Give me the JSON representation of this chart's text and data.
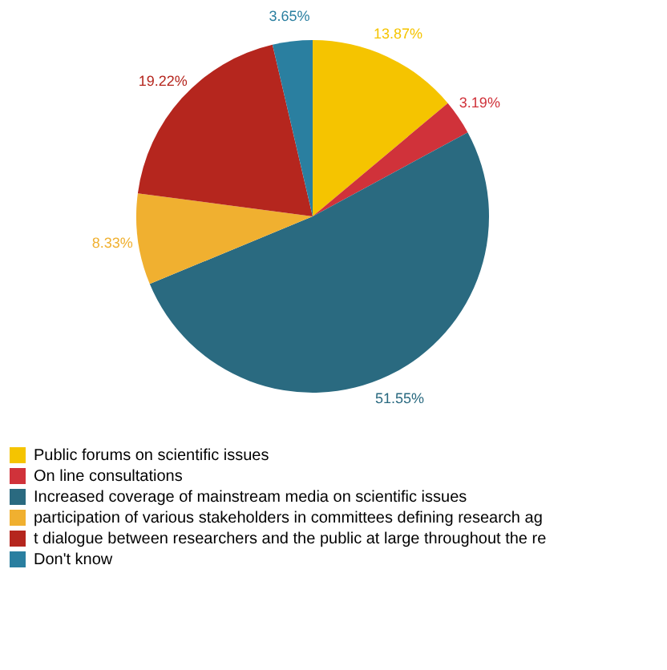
{
  "chart_data": {
    "type": "pie",
    "categories": [
      "Public forums on scientific issues",
      "On line consultations",
      "Increased coverage of mainstream media on scientific issues",
      "participation of various stakeholders in committees defining research ag",
      "t dialogue between researchers and the public at large throughout the re",
      "Don't know"
    ],
    "values": [
      13.87,
      3.19,
      51.55,
      8.33,
      19.22,
      3.65
    ],
    "value_labels": [
      "13.87%",
      "3.19%",
      "51.55%",
      "8.33%",
      "19.22%",
      "3.65%"
    ],
    "colors": [
      "#f5c400",
      "#d0323a",
      "#2a6a80",
      "#f0b030",
      "#b5261e",
      "#2a7fa0"
    ],
    "legend": "bottom"
  }
}
